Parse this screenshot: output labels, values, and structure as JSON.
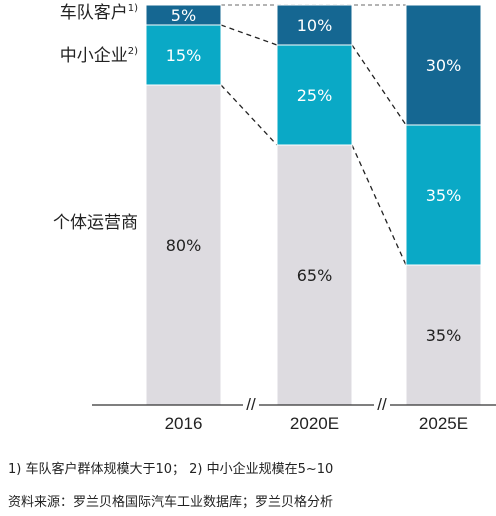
{
  "chart_data": {
    "type": "stacked-bar",
    "categories": [
      "2016",
      "2020E",
      "2025E"
    ],
    "series": [
      {
        "name": "个体运营商",
        "values": [
          80,
          65,
          35
        ],
        "color": "#dddbe0",
        "text_color": "#222222"
      },
      {
        "name": "中小企业",
        "name_sup": "2)",
        "values": [
          15,
          25,
          35
        ],
        "color": "#0aa9c6",
        "text_color": "#ffffff"
      },
      {
        "name": "车队客户",
        "name_sup": "1)",
        "values": [
          5,
          10,
          30
        ],
        "color": "#156792",
        "text_color": "#ffffff"
      }
    ],
    "ylim": [
      0,
      100
    ],
    "value_suffix": "%",
    "axis_break_marker": "//",
    "axis_breaks": [
      "between-2016-2020E",
      "between-2020E-2025E"
    ],
    "connector_lines": "dashed",
    "legend_position": "left"
  },
  "footnotes": {
    "note": "1) 车队客户群体规模大于10；  2) 中小企业规模在5~10",
    "source": "资料来源：罗兰贝格国际汽车工业数据库；罗兰贝格分析"
  },
  "colors": {
    "fleet": "#156792",
    "sme": "#0aa9c6",
    "individual": "#dddbe0",
    "axis": "#333333",
    "connector": "#222222"
  }
}
